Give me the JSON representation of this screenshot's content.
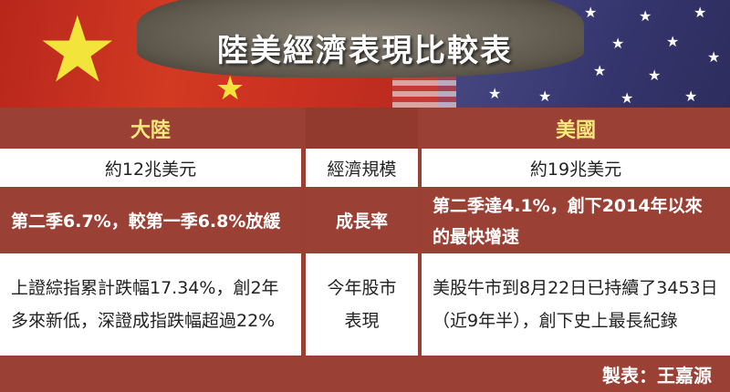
{
  "title": "陸美經濟表現比較表",
  "colors": {
    "table_red": "#9b4034",
    "header_yellow": "#f6e97c"
  },
  "table": {
    "headers": [
      "大陸",
      "",
      "美國"
    ],
    "rows": [
      {
        "china": "約12兆美元",
        "label": "經濟規模",
        "us": "約19兆美元"
      },
      {
        "china": "第二季6.7%，較第一季6.8%放緩",
        "label": "成長率",
        "us": "第二季達4.1%，創下2014年以來的最快增速"
      },
      {
        "china": "上證綜指累計跌幅17.34%，創2年多來新低，深證成指跌幅超過22%",
        "label": "今年股市表現",
        "us": "美股牛市到8月22日已持續了3453日（近9年半），創下史上最長紀錄"
      }
    ]
  },
  "credit": "製表：王嘉源"
}
